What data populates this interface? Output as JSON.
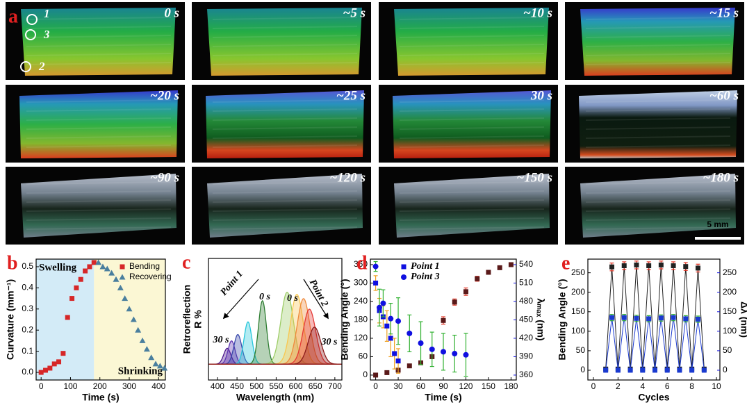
{
  "panel_a": {
    "label": "a",
    "tiles": [
      "0 s",
      "~5 s",
      "~10 s",
      "~15 s",
      "~20 s",
      "~25 s",
      "30 s",
      "~60 s",
      "~90 s",
      "~120 s",
      "~150 s",
      "~180 s"
    ],
    "markers": [
      "1",
      "3",
      "2"
    ],
    "scale_bar": "5 mm"
  },
  "chart_data": [
    {
      "type": "scatter",
      "label": "b",
      "xlabel": "Time (s)",
      "ylabel": "Curvature (mm⁻¹)",
      "xlim": [
        -17,
        423
      ],
      "xticks": [
        0,
        100,
        200,
        300,
        400
      ],
      "ylim": [
        -0.036,
        0.536
      ],
      "yticks": [
        {
          "value": 0,
          "label": "0.0"
        },
        0.1,
        0.2,
        0.3,
        0.4,
        0.5
      ],
      "regions": [
        {
          "label": "Swelling",
          "x": [
            -17,
            180
          ],
          "color": "#d3ebf7"
        },
        {
          "label": "Shrinking",
          "x": [
            180,
            423
          ],
          "color": "#fbf7d4"
        }
      ],
      "legend": "upper right",
      "series": [
        {
          "name": "Bending",
          "color": "#d62728",
          "marker": "square",
          "x": [
            0,
            15,
            30,
            45,
            60,
            75,
            90,
            105,
            120,
            135,
            150,
            165,
            180
          ],
          "values": [
            0.0,
            0.01,
            0.02,
            0.04,
            0.05,
            0.09,
            0.26,
            0.35,
            0.4,
            0.44,
            0.48,
            0.5,
            0.52
          ]
        },
        {
          "name": "Recovering",
          "color": "#4a7f9e",
          "marker": "triangle",
          "x": [
            195,
            210,
            225,
            240,
            255,
            270,
            285,
            300,
            315,
            330,
            345,
            360,
            375,
            390,
            405,
            420
          ],
          "values": [
            0.52,
            0.5,
            0.49,
            0.47,
            0.44,
            0.4,
            0.35,
            0.3,
            0.25,
            0.2,
            0.15,
            0.11,
            0.07,
            0.04,
            0.03,
            0.02
          ]
        }
      ]
    },
    {
      "type": "peaks",
      "label": "c",
      "xlabel": "Wavelength (nm)",
      "ylabel": [
        "Retroreflection",
        "R %"
      ],
      "xlim": [
        377,
        718
      ],
      "xticks": [
        400,
        450,
        500,
        550,
        600,
        650,
        700
      ],
      "ylim": [
        -15,
        100
      ],
      "annotations": [
        "Point 1",
        "0 s",
        "30 s",
        "0 s",
        "Point 2",
        "30 s"
      ],
      "series": [
        {
          "color": "#4a148c",
          "peak": 425,
          "height": 15,
          "width": 9
        },
        {
          "color": "#5e35b1",
          "peak": 436,
          "height": 22,
          "width": 9
        },
        {
          "color": "#3949ab",
          "peak": 452,
          "height": 28,
          "width": 10
        },
        {
          "color": "#26c6da",
          "peak": 478,
          "height": 40,
          "width": 10
        },
        {
          "color": "#2e7d32",
          "peak": 515,
          "height": 60,
          "width": 10
        },
        {
          "color": "#9ccc65",
          "peak": 578,
          "height": 68,
          "width": 16
        },
        {
          "color": "#f9c74f",
          "peak": 603,
          "height": 66,
          "width": 16
        },
        {
          "color": "#ef8a3c",
          "peak": 620,
          "height": 62,
          "width": 16
        },
        {
          "color": "#e53935",
          "peak": 635,
          "height": 52,
          "width": 16
        },
        {
          "color": "#8b1a1a",
          "peak": 648,
          "height": 35,
          "width": 16
        }
      ]
    },
    {
      "type": "scatter",
      "label": "d",
      "xlabel": "Time (s)",
      "ylabel": "Bending Angle (°)",
      "y2label": "λₘₐₓ (nm)",
      "y2color": "#1010e0",
      "xlim": [
        -7,
        187
      ],
      "xticks": [
        0,
        30,
        60,
        90,
        120,
        150,
        180
      ],
      "ylim": [
        -16,
        378
      ],
      "yticks": [
        0,
        60,
        120,
        180,
        240,
        300,
        360
      ],
      "y2lim": [
        352,
        549
      ],
      "y2ticks": [
        360,
        390,
        420,
        450,
        480,
        510,
        540
      ],
      "legend": "upper left",
      "series": [
        {
          "color": "#5a1a1a",
          "error_color": "#e03020",
          "marker": "square",
          "x": [
            0,
            15,
            30,
            45,
            60,
            75,
            90,
            105,
            120,
            135,
            150,
            165,
            180
          ],
          "values": [
            0,
            8,
            16,
            30,
            40,
            60,
            178,
            238,
            272,
            314,
            335,
            350,
            360
          ],
          "errors": [
            2,
            2,
            2,
            3,
            3,
            4,
            12,
            10,
            12,
            8,
            6,
            5,
            5
          ]
        },
        {
          "name": "Point 1",
          "color": "#1010e0",
          "error_color": "#f0a020",
          "marker": "square",
          "axis": "y2",
          "x": [
            0,
            5,
            10,
            15,
            20,
            25,
            30
          ],
          "values": [
            510,
            465,
            455,
            440,
            420,
            395,
            383
          ],
          "errors": [
            12,
            20,
            18,
            25,
            30,
            25,
            20
          ]
        },
        {
          "name": "Point 3",
          "color": "#1010e0",
          "error_color": "#30b030",
          "marker": "circle",
          "axis": "y2",
          "x": [
            0,
            5,
            10,
            20,
            30,
            45,
            60,
            75,
            90,
            105,
            120
          ],
          "values": [
            537,
            470,
            477,
            452,
            448,
            428,
            412,
            402,
            398,
            395,
            393
          ],
          "errors": [
            8,
            30,
            22,
            25,
            38,
            30,
            35,
            28,
            30,
            30,
            35
          ]
        }
      ]
    },
    {
      "type": "scatter",
      "label": "e",
      "xlabel": "Cycles",
      "ylabel": "Bending Angle (°)",
      "y2label": "Δλ (nm)",
      "y2color": "#1010e0",
      "xlim": [
        -0.45,
        10.28
      ],
      "xticks": [
        0,
        2,
        4,
        6,
        8,
        10
      ],
      "ylim": [
        -25,
        285
      ],
      "yticks": [
        0,
        50,
        100,
        150,
        200,
        250
      ],
      "y2lim": [
        -25,
        285
      ],
      "y2ticks": [
        0,
        50,
        100,
        150,
        200,
        250
      ],
      "series": [
        {
          "color": "#222222",
          "error_color": "#e03020",
          "marker": "square",
          "line": true,
          "x": [
            1,
            1.5,
            2,
            2.5,
            3,
            3.5,
            4,
            4.5,
            5,
            5.5,
            6,
            6.5,
            7,
            7.5,
            8,
            8.5,
            9
          ],
          "values": [
            3,
            265,
            3,
            268,
            3,
            270,
            3,
            268,
            3,
            270,
            3,
            268,
            3,
            266,
            3,
            262,
            3
          ],
          "errors": [
            1,
            10,
            1,
            10,
            1,
            10,
            1,
            10,
            1,
            10,
            1,
            10,
            1,
            10,
            1,
            10,
            1
          ]
        },
        {
          "color": "#1a3ad0",
          "error_color": "#30b030",
          "marker": "square",
          "line": true,
          "axis": "y2",
          "x": [
            1,
            1.5,
            2,
            2.5,
            3,
            3.5,
            4,
            4.5,
            5,
            5.5,
            6,
            6.5,
            7,
            7.5,
            8,
            8.5,
            9
          ],
          "values": [
            0,
            135,
            0,
            135,
            0,
            133,
            0,
            132,
            0,
            134,
            0,
            135,
            0,
            132,
            0,
            131,
            0
          ],
          "errors": [
            1,
            8,
            1,
            8,
            1,
            8,
            1,
            8,
            1,
            8,
            1,
            8,
            1,
            8,
            1,
            8,
            1
          ]
        }
      ]
    }
  ]
}
